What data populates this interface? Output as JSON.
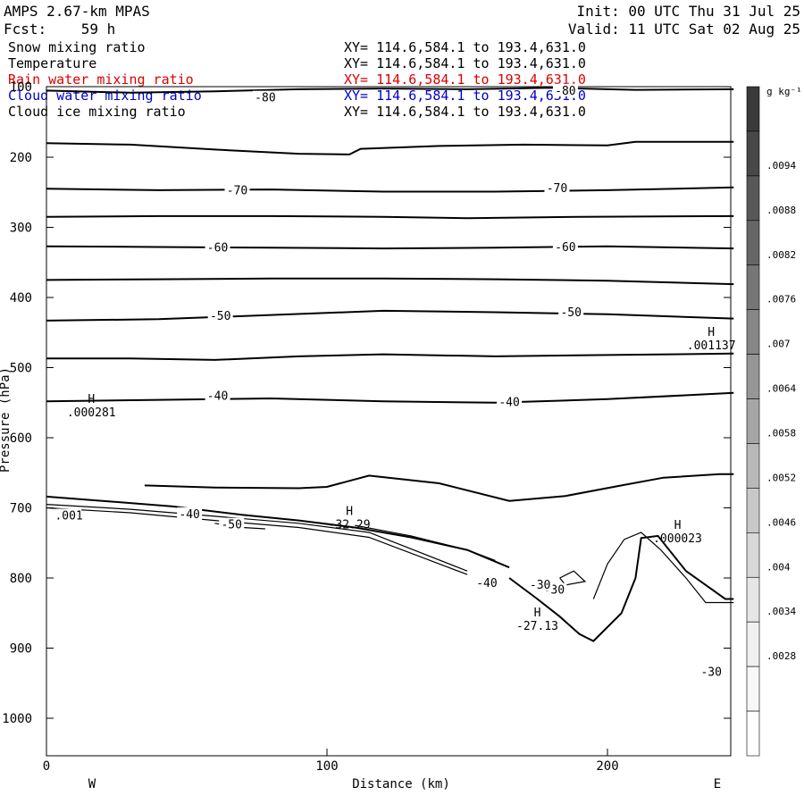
{
  "header": {
    "model": "AMPS 2.67-km MPAS",
    "fcst": "Fcst:    59 h",
    "init": "Init: 00 UTC Thu 31 Jul 25",
    "valid": "Valid: 11 UTC Sat 02 Aug 25"
  },
  "fields": [
    {
      "name": "Snow mixing ratio",
      "xy": "XY= 114.6,584.1 to 193.4,631.0",
      "color": "#000000"
    },
    {
      "name": "Temperature",
      "xy": "XY= 114.6,584.1 to 193.4,631.0",
      "color": "#000000"
    },
    {
      "name": "Rain water mixing ratio",
      "xy": "XY= 114.6,584.1 to 193.4,631.0",
      "color": "#dd0000"
    },
    {
      "name": "Cloud water mixing ratio",
      "xy": "XY= 114.6,584.1 to 193.4,631.0",
      "color": "#0000cc"
    },
    {
      "name": "Cloud ice mixing ratio",
      "xy": "XY= 114.6,584.1 to 193.4,631.0",
      "color": "#000000"
    }
  ],
  "chart_data": {
    "type": "line",
    "xlabel": "Distance (km)",
    "ylabel": "Pressure (hPa)",
    "xlim": [
      0,
      245
    ],
    "ylim": [
      1050,
      100
    ],
    "x_ticks": [
      0,
      100,
      200
    ],
    "y_ticks": [
      200,
      300,
      400,
      500,
      600,
      700,
      800,
      900,
      1000
    ],
    "left_direction": "W",
    "right_direction": "E",
    "temperature_contours": [
      {
        "level": "-80",
        "points": [
          [
            0,
            105
          ],
          [
            30,
            108
          ],
          [
            60,
            106
          ],
          [
            90,
            103
          ],
          [
            120,
            102
          ],
          [
            150,
            103
          ],
          [
            180,
            101
          ],
          [
            210,
            104
          ],
          [
            245,
            103
          ]
        ],
        "labels": [
          [
            78,
            118
          ],
          [
            185,
            108
          ]
        ]
      },
      {
        "level": "",
        "points": [
          [
            0,
            180
          ],
          [
            30,
            182
          ],
          [
            60,
            189
          ],
          [
            90,
            195
          ],
          [
            108,
            196
          ],
          [
            112,
            188
          ],
          [
            140,
            184
          ],
          [
            170,
            182
          ],
          [
            200,
            183
          ],
          [
            210,
            178
          ],
          [
            245,
            178
          ]
        ],
        "labels": []
      },
      {
        "level": "-70",
        "points": [
          [
            0,
            245
          ],
          [
            40,
            247
          ],
          [
            80,
            246
          ],
          [
            120,
            249
          ],
          [
            160,
            249
          ],
          [
            200,
            247
          ],
          [
            245,
            243
          ]
        ],
        "labels": [
          [
            68,
            250
          ],
          [
            182,
            247
          ]
        ]
      },
      {
        "level": "",
        "points": [
          [
            0,
            285
          ],
          [
            40,
            284
          ],
          [
            80,
            284
          ],
          [
            120,
            285
          ],
          [
            150,
            287
          ],
          [
            190,
            285
          ],
          [
            245,
            284
          ]
        ],
        "labels": []
      },
      {
        "level": "-60",
        "points": [
          [
            0,
            327
          ],
          [
            40,
            328
          ],
          [
            80,
            329
          ],
          [
            120,
            330
          ],
          [
            160,
            329
          ],
          [
            200,
            327
          ],
          [
            245,
            330
          ]
        ],
        "labels": [
          [
            61,
            332
          ],
          [
            185,
            331
          ]
        ]
      },
      {
        "level": "",
        "points": [
          [
            0,
            375
          ],
          [
            40,
            374
          ],
          [
            80,
            373
          ],
          [
            120,
            373
          ],
          [
            160,
            374
          ],
          [
            200,
            376
          ],
          [
            245,
            381
          ]
        ],
        "labels": []
      },
      {
        "level": "-50",
        "points": [
          [
            0,
            433
          ],
          [
            40,
            431
          ],
          [
            80,
            425
          ],
          [
            120,
            419
          ],
          [
            160,
            421
          ],
          [
            200,
            424
          ],
          [
            245,
            430
          ]
        ],
        "labels": [
          [
            62,
            429
          ],
          [
            187,
            424
          ]
        ]
      },
      {
        "level": "",
        "points": [
          [
            0,
            487
          ],
          [
            30,
            487
          ],
          [
            60,
            489
          ],
          [
            90,
            484
          ],
          [
            120,
            481
          ],
          [
            160,
            484
          ],
          [
            200,
            482
          ],
          [
            245,
            480
          ]
        ],
        "labels": []
      },
      {
        "level": "-40",
        "points": [
          [
            0,
            548
          ],
          [
            40,
            546
          ],
          [
            80,
            544
          ],
          [
            120,
            548
          ],
          [
            160,
            550
          ],
          [
            200,
            545
          ],
          [
            245,
            536
          ]
        ],
        "labels": [
          [
            61,
            543
          ],
          [
            165,
            552
          ]
        ]
      },
      {
        "level": "",
        "points": [
          [
            35,
            668
          ],
          [
            60,
            671
          ],
          [
            90,
            672
          ],
          [
            100,
            670
          ],
          [
            115,
            654
          ],
          [
            140,
            665
          ],
          [
            165,
            690
          ],
          [
            185,
            683
          ],
          [
            205,
            668
          ],
          [
            220,
            657
          ],
          [
            240,
            652
          ],
          [
            245,
            652
          ]
        ],
        "labels": []
      },
      {
        "level": "-40",
        "points": [
          [
            0,
            684
          ],
          [
            20,
            690
          ],
          [
            45,
            698
          ],
          [
            70,
            710
          ],
          [
            90,
            718
          ],
          [
            110,
            728
          ],
          [
            130,
            742
          ],
          [
            150,
            760
          ],
          [
            165,
            785
          ]
        ],
        "labels": [
          [
            51,
            712
          ]
        ]
      },
      {
        "level": "-30",
        "points": [
          [
            165,
            800
          ],
          [
            175,
            830
          ],
          [
            183,
            855
          ],
          [
            190,
            880
          ],
          [
            195,
            890
          ],
          [
            205,
            850
          ],
          [
            210,
            800
          ],
          [
            212,
            743
          ],
          [
            218,
            740
          ],
          [
            228,
            790
          ],
          [
            242,
            830
          ],
          [
            245,
            830
          ]
        ],
        "labels": [
          [
            181,
            820
          ],
          [
            237,
            937
          ]
        ]
      }
    ],
    "maxima": [
      {
        "symbol": "H",
        "value": ".000281",
        "x": 16,
        "p": 550
      },
      {
        "symbol": "H",
        "value": ".001137",
        "x": 237,
        "p": 455
      },
      {
        "symbol": "H",
        "value": "-32.29",
        "x": 108,
        "p": 710
      },
      {
        "symbol": "H",
        "value": ".000023",
        "x": 225,
        "p": 730
      },
      {
        "symbol": "H",
        "value": "-27.13",
        "x": 175,
        "p": 855
      }
    ],
    "extra_labels": [
      {
        "text": ".001",
        "x": 8,
        "p": 714
      },
      {
        "text": "-50",
        "x": 66,
        "p": 727
      },
      {
        "text": "-40",
        "x": 157,
        "p": 810
      },
      {
        "text": "-30",
        "x": 176,
        "p": 813
      }
    ],
    "colorbar": {
      "unit": "g kg⁻¹",
      "labels": [
        ".0094",
        ".0088",
        ".0082",
        ".0076",
        ".007",
        ".0064",
        ".0058",
        ".0052",
        ".0046",
        ".004",
        ".0034",
        ".0028"
      ],
      "shades": [
        "#3a3a3a",
        "#484848",
        "#585858",
        "#666666",
        "#767676",
        "#868686",
        "#969696",
        "#a6a6a6",
        "#b8b8b8",
        "#c8c8c8",
        "#d8d8d8",
        "#e6e6e6",
        "#f0f0f0",
        "#f8f8f8",
        "#ffffff"
      ]
    }
  }
}
